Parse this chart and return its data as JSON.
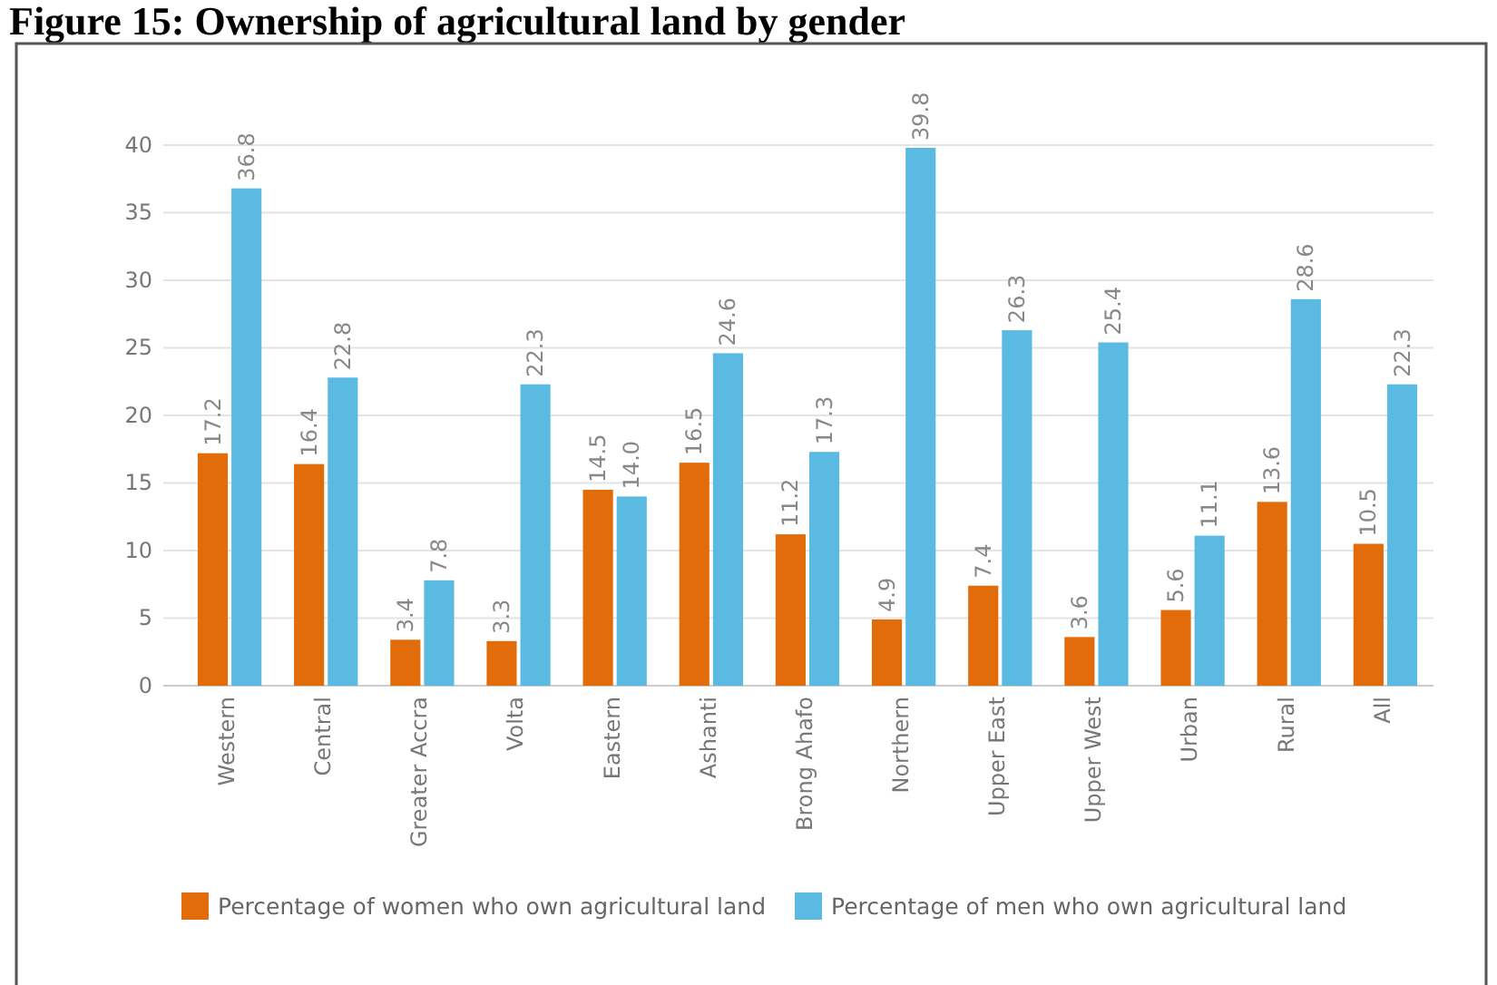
{
  "chart_data": {
    "type": "bar",
    "title": "Figure 15: Ownership of agricultural land by gender",
    "categories": [
      "Western",
      "Central",
      "Greater Accra",
      "Volta",
      "Eastern",
      "Ashanti",
      "Brong Ahafo",
      "Northern",
      "Upper East",
      "Upper West",
      "Urban",
      "Rural",
      "All"
    ],
    "series": [
      {
        "name": "Percentage of women who own agricultural land",
        "color": "#e36c0a",
        "values": [
          17.2,
          16.4,
          3.4,
          3.3,
          14.5,
          16.5,
          11.2,
          4.9,
          7.4,
          3.6,
          5.6,
          13.6,
          10.5
        ],
        "value_labels": [
          "17.2",
          "16.4",
          "3.4",
          "3.3",
          "14.5",
          "16.5",
          "11.2",
          "4.9",
          "7.4",
          "3.6",
          "5.6",
          "13.6",
          "10.5"
        ]
      },
      {
        "name": "Percentage of men who own agricultural land",
        "color": "#5bbae2",
        "values": [
          36.8,
          22.8,
          7.8,
          22.3,
          14.0,
          24.6,
          17.3,
          39.8,
          26.3,
          25.4,
          11.1,
          28.6,
          22.3
        ],
        "value_labels": [
          "36.8",
          "22.8",
          "7.8",
          "22.3",
          "14.0",
          "24.6",
          "17.3",
          "39.8",
          "26.3",
          "25.4",
          "11.1",
          "28.6",
          "22.3"
        ]
      }
    ],
    "ylim": [
      0,
      40
    ],
    "yticks": [
      0,
      5,
      10,
      15,
      20,
      25,
      30,
      35,
      40
    ],
    "grid": "y",
    "legend": "bottom"
  }
}
